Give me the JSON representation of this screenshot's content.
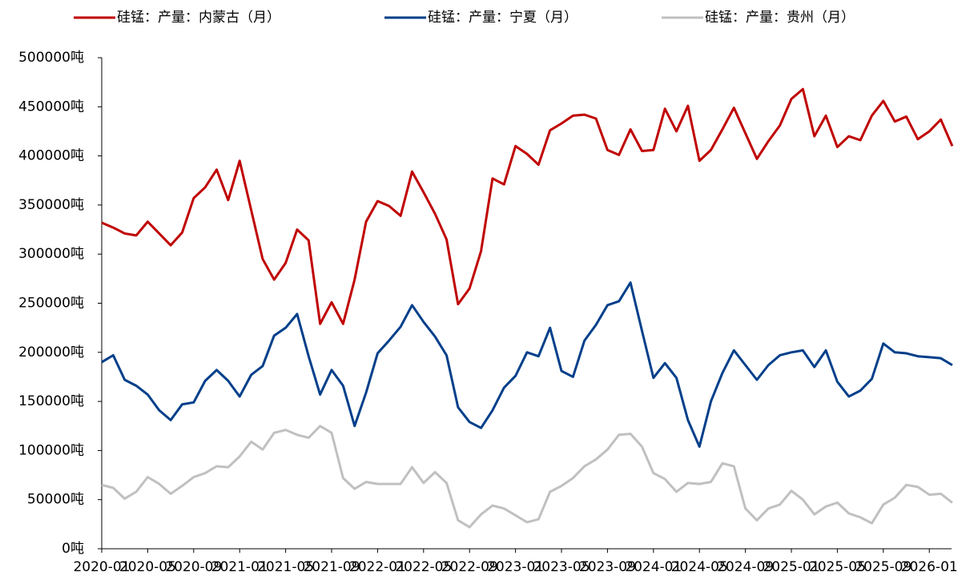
{
  "chart_data": {
    "type": "line",
    "x": [
      "2020-01",
      "2020-02",
      "2020-03",
      "2020-04",
      "2020-05",
      "2020-06",
      "2020-07",
      "2020-08",
      "2020-09",
      "2020-10",
      "2020-11",
      "2020-12",
      "2021-01",
      "2021-02",
      "2021-03",
      "2021-04",
      "2021-05",
      "2021-06",
      "2021-07",
      "2021-08",
      "2021-09",
      "2021-10",
      "2021-11",
      "2021-12",
      "2022-01",
      "2022-02",
      "2022-03",
      "2022-04",
      "2022-05",
      "2022-06",
      "2022-07",
      "2022-08",
      "2022-09",
      "2022-10",
      "2022-11",
      "2022-12",
      "2023-01",
      "2023-02",
      "2023-03",
      "2023-04",
      "2023-05",
      "2023-06",
      "2023-07",
      "2023-08",
      "2023-09",
      "2023-10",
      "2023-11",
      "2023-12",
      "2024-01",
      "2024-02",
      "2024-03",
      "2024-04",
      "2024-05",
      "2024-06",
      "2024-07",
      "2024-08",
      "2024-09",
      "2024-10",
      "2024-11",
      "2024-12",
      "2025-01",
      "2025-02",
      "2025-03",
      "2025-04",
      "2025-05",
      "2025-06",
      "2025-07",
      "2025-08",
      "2025-09",
      "2025-10",
      "2025-11",
      "2025-12",
      "2026-01",
      "2026-02",
      "2026-03"
    ],
    "series": [
      {
        "name": "硅锰：产量：内蒙古（月）",
        "color": "#c00000",
        "values": [
          332000,
          327000,
          321000,
          319000,
          333000,
          321000,
          309000,
          322000,
          357000,
          368000,
          386000,
          355000,
          395000,
          345000,
          295000,
          274000,
          291000,
          325000,
          314000,
          229000,
          251000,
          229000,
          274000,
          333000,
          354000,
          349000,
          339000,
          384000,
          363000,
          341000,
          315000,
          249000,
          265000,
          303000,
          377000,
          371000,
          410000,
          402000,
          391000,
          426000,
          433000,
          441000,
          442000,
          438000,
          406000,
          401000,
          427000,
          405000,
          406000,
          448000,
          425000,
          451000,
          395000,
          406000,
          427000,
          449000,
          423000,
          397000,
          415000,
          431000,
          458000,
          468000,
          420000,
          441000,
          409000,
          420000,
          416000,
          441000,
          456000,
          435000,
          440000,
          417000,
          425000,
          437000,
          410000
        ]
      },
      {
        "name": "硅锰：产量：宁夏（月）",
        "color": "#003f8a",
        "values": [
          190000,
          197000,
          172000,
          166000,
          157000,
          141000,
          131000,
          147000,
          149000,
          171000,
          182000,
          171000,
          155000,
          177000,
          186000,
          217000,
          225000,
          239000,
          196000,
          157000,
          182000,
          166000,
          125000,
          159000,
          199000,
          212000,
          226000,
          248000,
          231000,
          216000,
          197000,
          144000,
          129000,
          123000,
          141000,
          164000,
          176000,
          200000,
          196000,
          225000,
          181000,
          175000,
          212000,
          228000,
          248000,
          252000,
          271000,
          222000,
          174000,
          189000,
          174000,
          131000,
          104000,
          150000,
          179000,
          202000,
          187000,
          172000,
          187000,
          197000,
          200000,
          202000,
          185000,
          202000,
          170000,
          155000,
          161000,
          173000,
          209000,
          200000,
          199000,
          196000,
          195000,
          194000,
          187000
        ]
      },
      {
        "name": "硅锰：产量：贵州（月）",
        "color": "#c0c0c0",
        "values": [
          65000,
          62000,
          51000,
          58000,
          73000,
          66000,
          56000,
          64000,
          73000,
          77000,
          84000,
          83000,
          94000,
          109000,
          101000,
          118000,
          121000,
          116000,
          113000,
          125000,
          118000,
          72000,
          61000,
          68000,
          66000,
          66000,
          66000,
          83000,
          67000,
          78000,
          67000,
          29000,
          22000,
          35000,
          44000,
          41000,
          34000,
          27000,
          30000,
          58000,
          64000,
          72000,
          84000,
          91000,
          101000,
          116000,
          117000,
          104000,
          77000,
          71000,
          58000,
          67000,
          66000,
          68000,
          87000,
          84000,
          41000,
          29000,
          41000,
          45000,
          59000,
          50000,
          35000,
          43000,
          47000,
          36000,
          32000,
          26000,
          45000,
          52000,
          65000,
          63000,
          55000,
          56000,
          47000
        ]
      }
    ],
    "ylim": [
      0,
      500000
    ],
    "yticks": [
      {
        "value": 0,
        "label": "0吨"
      },
      {
        "value": 50000,
        "label": "50000吨"
      },
      {
        "value": 100000,
        "label": "100000吨"
      },
      {
        "value": 150000,
        "label": "150000吨"
      },
      {
        "value": 200000,
        "label": "200000吨"
      },
      {
        "value": 250000,
        "label": "250000吨"
      },
      {
        "value": 300000,
        "label": "300000吨"
      },
      {
        "value": 350000,
        "label": "350000吨"
      },
      {
        "value": 400000,
        "label": "400000吨"
      },
      {
        "value": 450000,
        "label": "450000吨"
      },
      {
        "value": 500000,
        "label": "500000吨"
      }
    ],
    "xticks": [
      "2020-01",
      "2020-05",
      "2020-09",
      "2021-01",
      "2021-05",
      "2021-09",
      "2022-01",
      "2022-05",
      "2022-09",
      "2023-01",
      "2023-05",
      "2023-09",
      "2024-01",
      "2024-05",
      "2024-09",
      "2025-01",
      "2025-05",
      "2025-09",
      "2026-01"
    ],
    "legend": "top"
  }
}
